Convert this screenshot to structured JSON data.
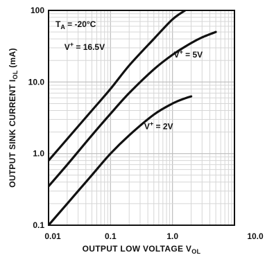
{
  "chart_data": {
    "type": "line",
    "title": "",
    "annotation_condition": {
      "main": "T",
      "sub": "A",
      "rest": " = -20°C"
    },
    "xlabel": {
      "main": "OUTPUT LOW VOLTAGE V",
      "sub": "OL"
    },
    "ylabel": {
      "main": "OUTPUT SINK CURRENT I",
      "sub": "OL",
      "rest": " (mA)"
    },
    "x_scale": "log",
    "y_scale": "log",
    "xlim": [
      0.01,
      10.0
    ],
    "ylim": [
      0.1,
      100
    ],
    "x_ticks": [
      "0.01",
      "0.1",
      "1.0",
      "10.0"
    ],
    "y_ticks": [
      "0.1",
      "1.0",
      "10.0",
      "100"
    ],
    "grid": true,
    "series": [
      {
        "name": "V+ = 16.5V",
        "label_parts": {
          "main": "V",
          "sup": "+",
          "rest": " = 16.5V"
        },
        "x": [
          0.01,
          0.02,
          0.05,
          0.1,
          0.2,
          0.5,
          1.0,
          1.6
        ],
        "y": [
          0.8,
          1.6,
          4.0,
          8.0,
          17.0,
          40.0,
          75.0,
          100
        ]
      },
      {
        "name": "V+ = 5V",
        "label_parts": {
          "main": "V",
          "sup": "+",
          "rest": " = 5V"
        },
        "x": [
          0.01,
          0.02,
          0.05,
          0.1,
          0.2,
          0.5,
          1.0,
          2.0,
          3.0,
          5.0
        ],
        "y": [
          0.35,
          0.7,
          1.8,
          3.6,
          7.0,
          15.0,
          24.0,
          35.0,
          42.0,
          50.0
        ]
      },
      {
        "name": "V+ = 2V",
        "label_parts": {
          "main": "V",
          "sup": "+",
          "rest": " = 2V"
        },
        "x": [
          0.01,
          0.02,
          0.05,
          0.1,
          0.2,
          0.5,
          1.0,
          1.5,
          2.0
        ],
        "y": [
          0.1,
          0.2,
          0.5,
          1.0,
          1.8,
          3.5,
          5.0,
          5.8,
          6.3
        ]
      }
    ]
  }
}
